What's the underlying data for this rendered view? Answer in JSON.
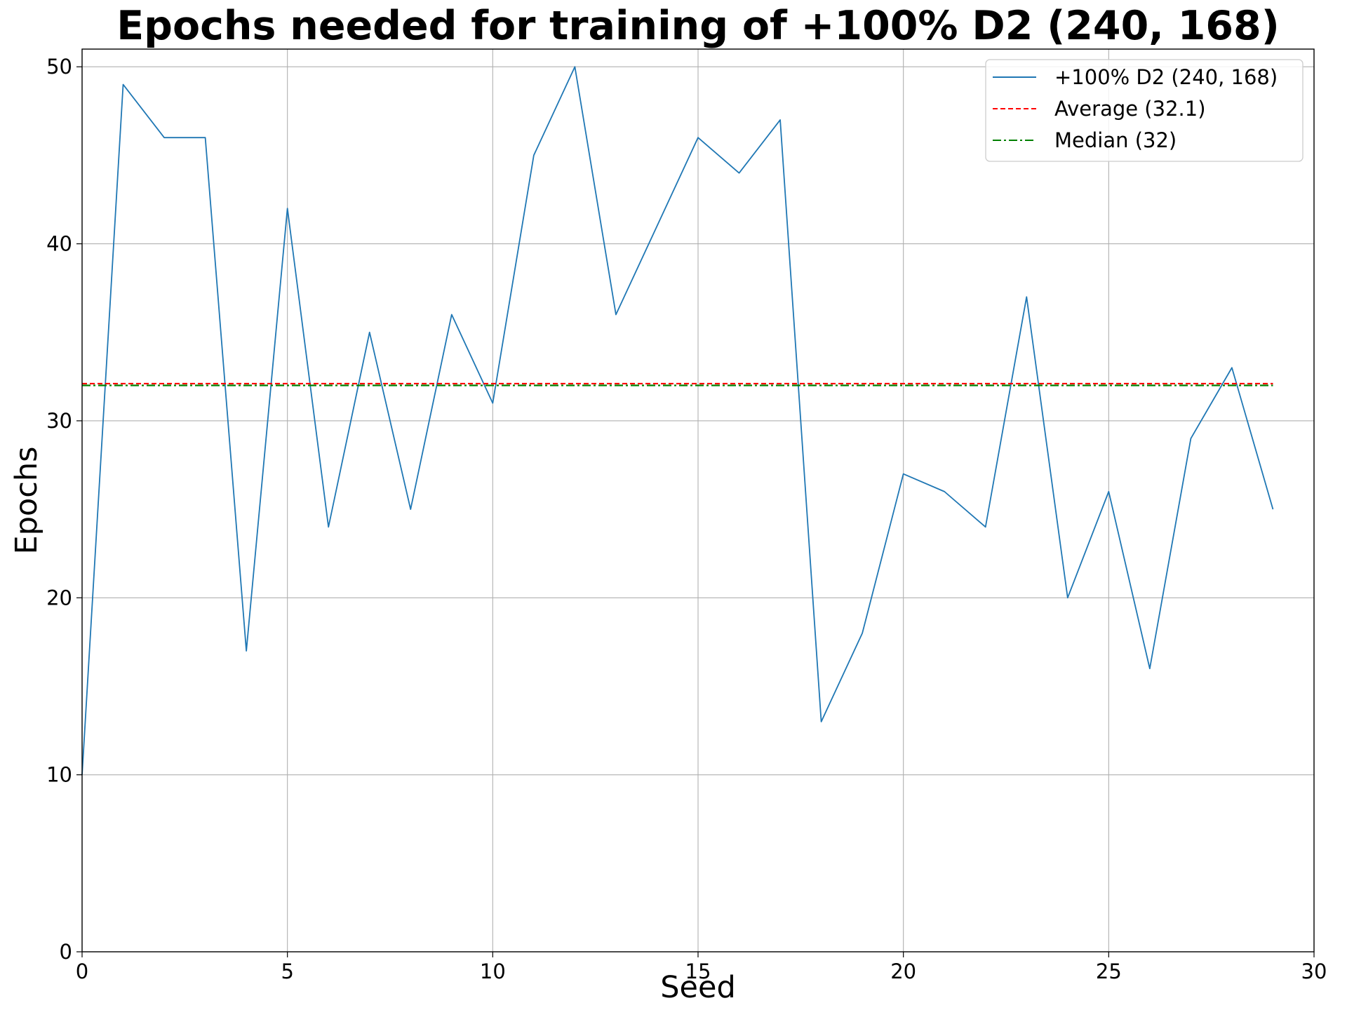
{
  "chart_data": {
    "type": "line",
    "title": "Epochs needed for training of +100% D2 (240, 168)",
    "xlabel": "Seed",
    "ylabel": "Epochs",
    "xlim": [
      0,
      30
    ],
    "ylim": [
      0,
      51
    ],
    "x_ticks": [
      "0",
      "5",
      "10",
      "15",
      "20",
      "25",
      "30"
    ],
    "y_ticks": [
      "0",
      "10",
      "20",
      "30",
      "40",
      "50"
    ],
    "grid": true,
    "legend_position": "top-right",
    "series": [
      {
        "name": "+100% D2 (240, 168)",
        "color": "#1f77b4",
        "style": "solid",
        "x": [
          0,
          1,
          2,
          3,
          4,
          5,
          6,
          7,
          8,
          9,
          10,
          11,
          12,
          13,
          14,
          15,
          16,
          17,
          18,
          19,
          20,
          21,
          22,
          23,
          24,
          25,
          26,
          27,
          28,
          29
        ],
        "values": [
          10,
          49,
          46,
          46,
          17,
          42,
          24,
          35,
          25,
          36,
          31,
          45,
          50,
          36,
          41,
          46,
          44,
          47,
          13,
          18,
          27,
          26,
          24,
          37,
          20,
          26,
          16,
          29,
          33,
          25
        ]
      },
      {
        "name": "Average (32.1)",
        "color": "#ff0000",
        "style": "dashed",
        "x": [
          0,
          29
        ],
        "values": [
          32.1,
          32.1
        ]
      },
      {
        "name": "Median (32)",
        "color": "#008000",
        "style": "dashdot",
        "x": [
          0,
          29
        ],
        "values": [
          32,
          32
        ]
      }
    ]
  }
}
